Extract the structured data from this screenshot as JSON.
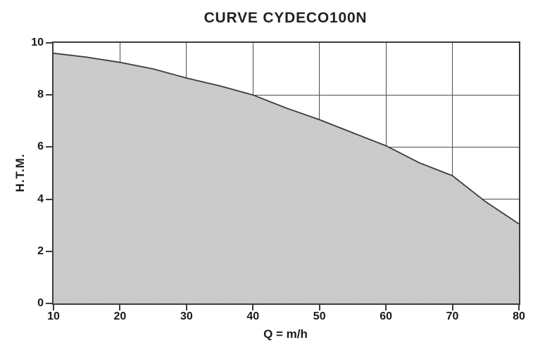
{
  "chart_data": {
    "type": "area",
    "title": "CURVE CYDECO100N",
    "xlabel": "Q = m/h",
    "ylabel": "H.T.M.",
    "xlim": [
      10,
      80
    ],
    "ylim": [
      0,
      10
    ],
    "xticks": [
      10,
      20,
      30,
      40,
      50,
      60,
      70,
      80
    ],
    "yticks": [
      0,
      2,
      4,
      6,
      8,
      10
    ],
    "grid": true,
    "legend": "none",
    "series": [
      {
        "name": "CYDECO100N",
        "style": "line-with-halftone-fill",
        "x": [
          10,
          15,
          20,
          25,
          30,
          35,
          40,
          45,
          50,
          55,
          60,
          65,
          70,
          75,
          80
        ],
        "y": [
          9.6,
          9.45,
          9.25,
          9.0,
          8.65,
          8.35,
          8.0,
          7.5,
          7.05,
          6.55,
          6.05,
          5.4,
          4.9,
          3.9,
          3.05
        ]
      }
    ],
    "colors": {
      "background": "#ffffff",
      "frame": "#3c3c3c",
      "grid": "#4d4d4d",
      "line": "#3c3c3c",
      "fill_dot": "#969696",
      "fill_base": "#ffffff",
      "text": "#1a1a1a"
    }
  }
}
